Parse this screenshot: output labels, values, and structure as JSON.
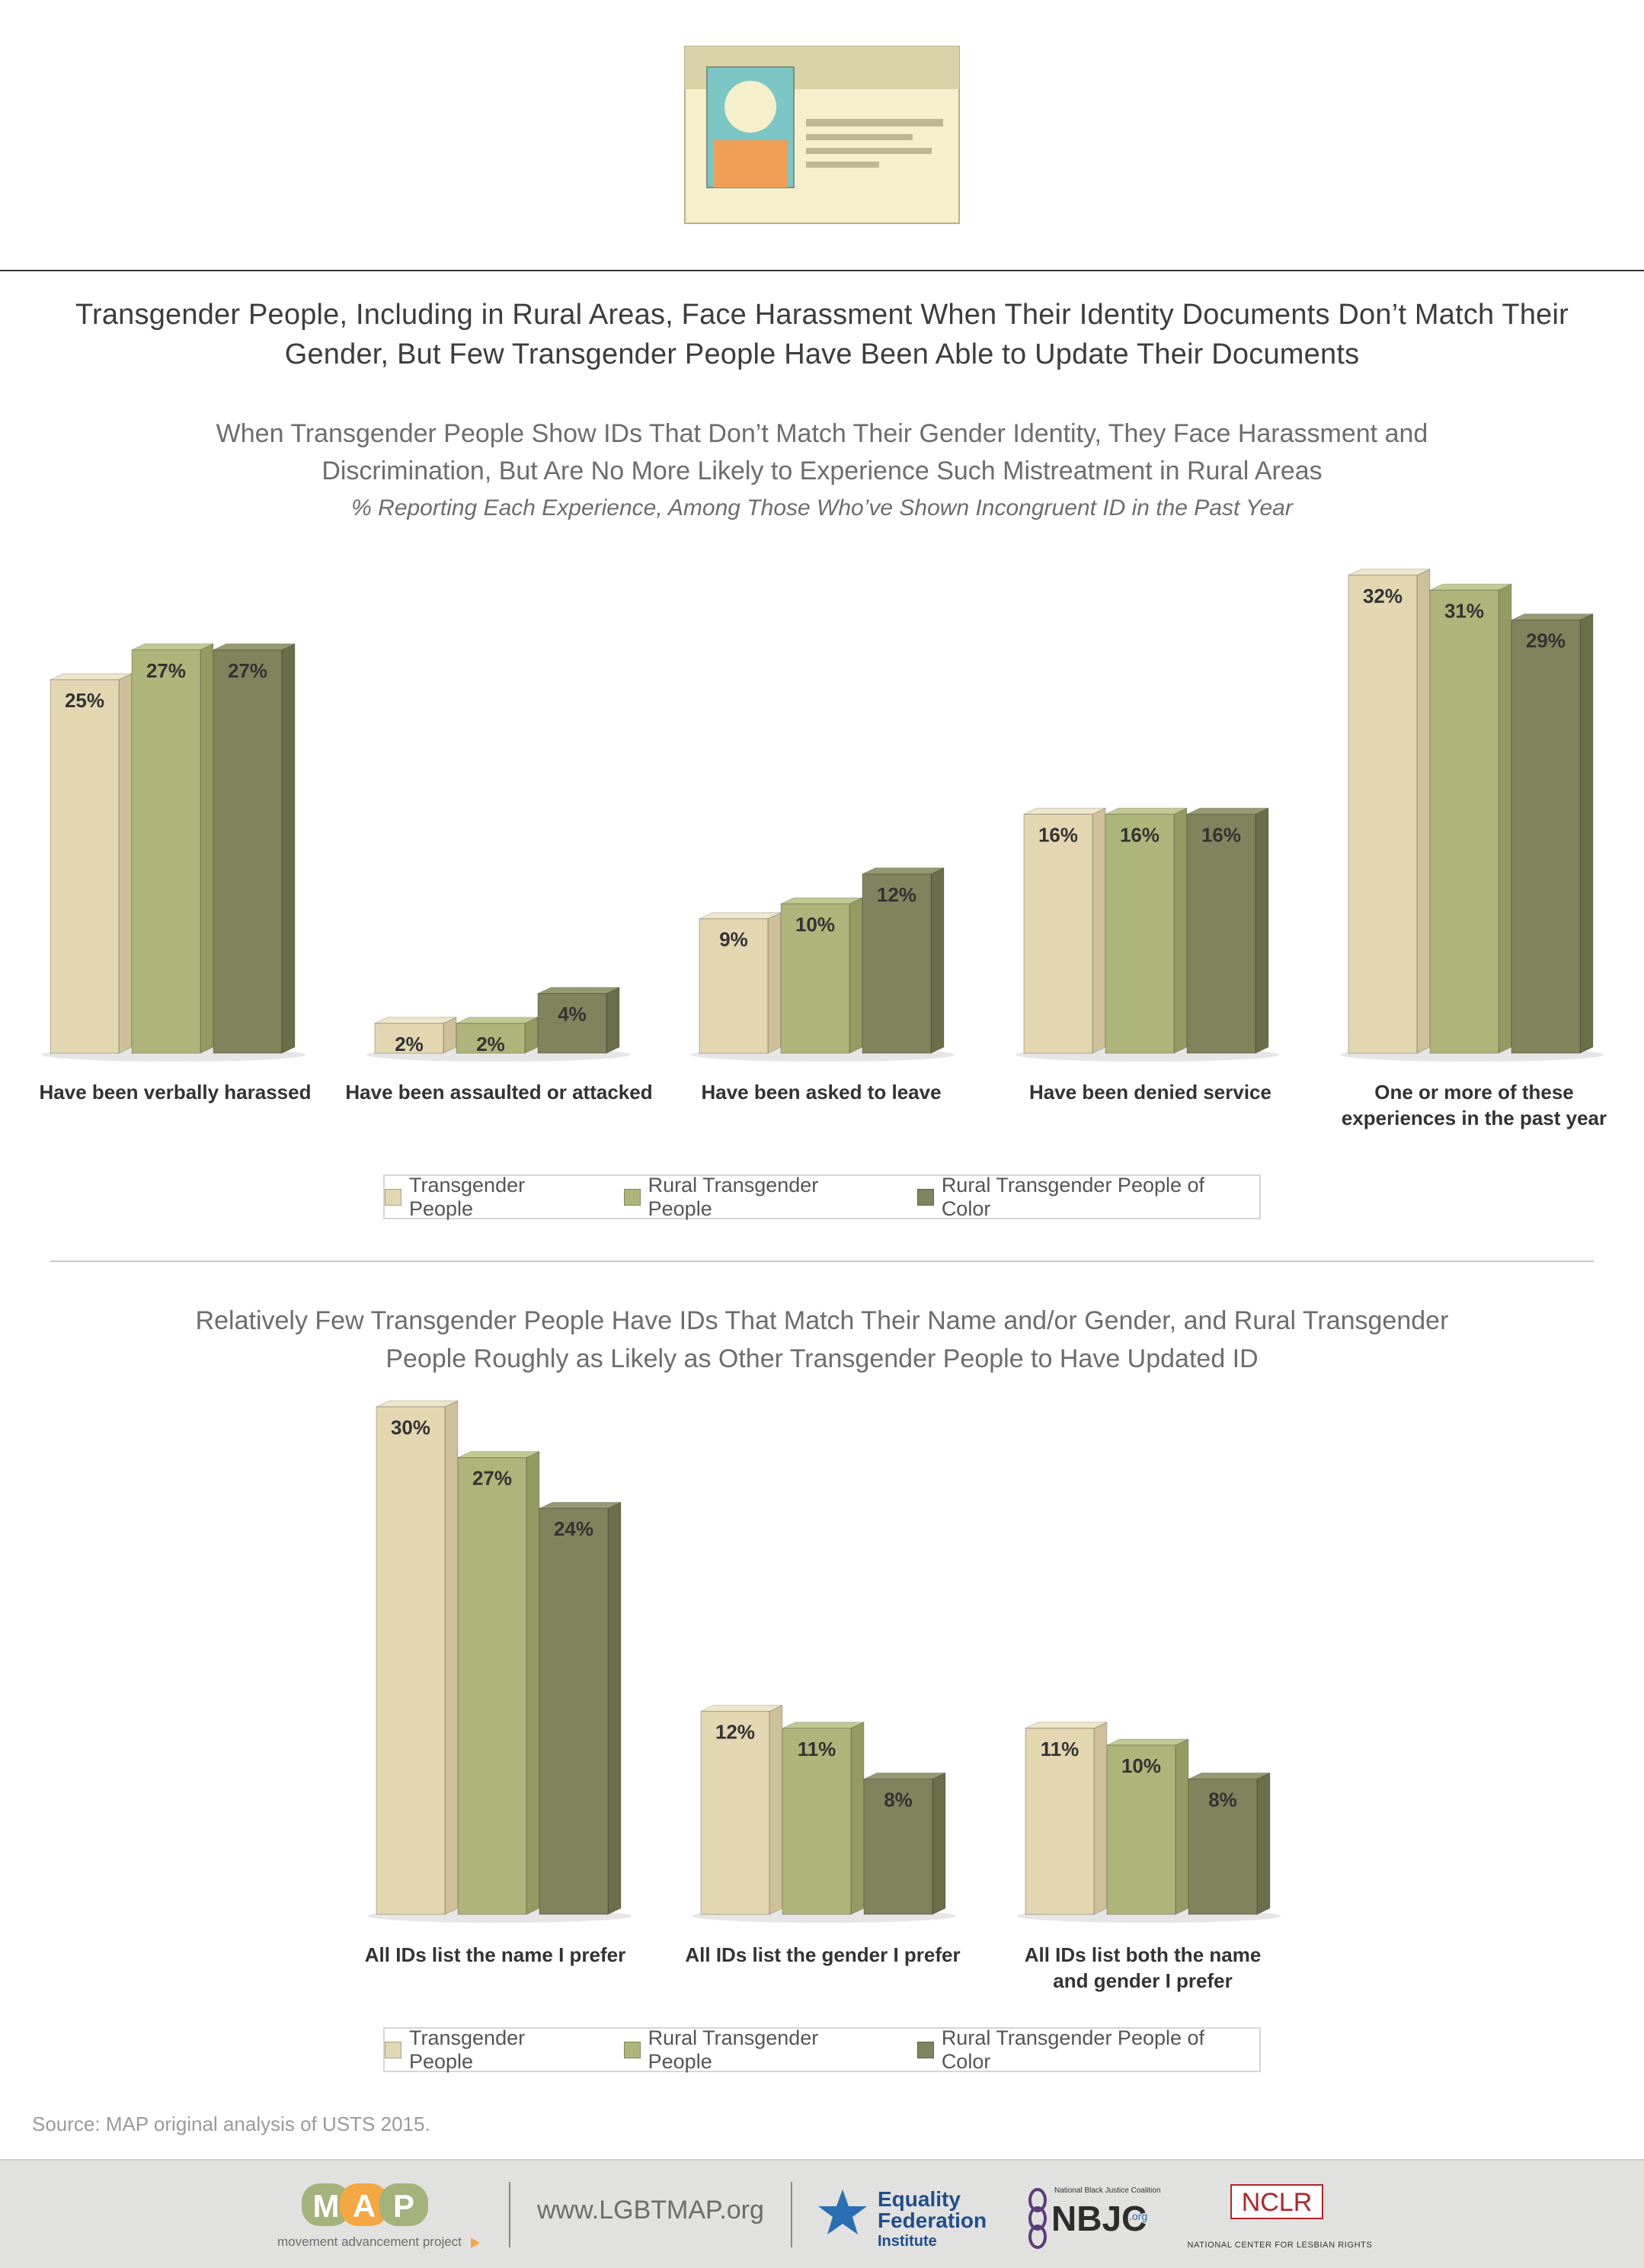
{
  "header": {
    "title_line1": "Transgender People, Including in Rural Areas, Face Harassment When Their Identity Documents Don’t Match Their",
    "title_line2": "Gender, But Few Transgender People Have Been Able to Update Their Documents"
  },
  "section1": {
    "subtitle_line1": "When Transgender People Show IDs That Don’t Match Their Gender Identity, They Face Harassment and",
    "subtitle_line2": "Discrimination, But Are No More Likely to Experience Such Mistreatment in Rural Areas",
    "note": "% Reporting Each Experience, Among Those Who’ve Shown Incongruent ID in the Past Year"
  },
  "section2": {
    "subtitle_line1": "Relatively Few Transgender People Have IDs That Match Their Name and/or Gender, and Rural Transgender",
    "subtitle_line2": "People Roughly as Likely as Other Transgender People to Have Updated ID"
  },
  "legend": {
    "s1": "Transgender People",
    "s2": "Rural Transgender People",
    "s3": "Rural Transgender People of Color"
  },
  "colors": {
    "s1_front": "#e3d7b2",
    "s1_side": "#cdc09a",
    "s1_top": "#efe6cb",
    "s2_front": "#aeb57a",
    "s2_side": "#949b62",
    "s2_top": "#c3c994",
    "s3_front": "#80845c",
    "s3_side": "#6a6e49",
    "s3_top": "#969a72"
  },
  "chart_data": [
    {
      "type": "bar",
      "categories": [
        "Have been verbally harassed",
        "Have been assaulted or attacked",
        "Have been asked to leave",
        "Have been denied service",
        "One or more of these experiences in the past year"
      ],
      "series": [
        {
          "name": "Transgender People",
          "values": [
            25,
            2,
            9,
            16,
            32
          ]
        },
        {
          "name": "Rural Transgender People",
          "values": [
            27,
            2,
            10,
            16,
            31
          ]
        },
        {
          "name": "Rural Transgender People of Color",
          "values": [
            27,
            4,
            12,
            16,
            29
          ]
        }
      ],
      "ylim": [
        0,
        32
      ],
      "value_labels": true
    },
    {
      "type": "bar",
      "categories": [
        "All IDs list the name I prefer",
        "All IDs list the gender I prefer",
        "All IDs list both the name and gender I prefer"
      ],
      "series": [
        {
          "name": "Transgender People",
          "values": [
            30,
            12,
            11
          ]
        },
        {
          "name": "Rural Transgender People",
          "values": [
            27,
            11,
            10
          ]
        },
        {
          "name": "Rural Transgender People of Color",
          "values": [
            24,
            8,
            8
          ]
        }
      ],
      "ylim": [
        0,
        30
      ],
      "value_labels": true
    }
  ],
  "source": "Source: MAP original analysis of USTS 2015.",
  "footer": {
    "map_letters": [
      "M",
      "A",
      "P"
    ],
    "map_tagline": "movement advancement project",
    "url": "www.LGBTMAP.org",
    "efi_line1": "Equality",
    "efi_line2": "Federation",
    "efi_line3": "Institute",
    "nbjc_small": "National Black Justice Coalition",
    "nbjc_name": "NBJC",
    "nbjc_org": ".org",
    "nclr_name": "NCLR",
    "nclr_tagline": "NATIONAL CENTER FOR LESBIAN RIGHTS"
  }
}
